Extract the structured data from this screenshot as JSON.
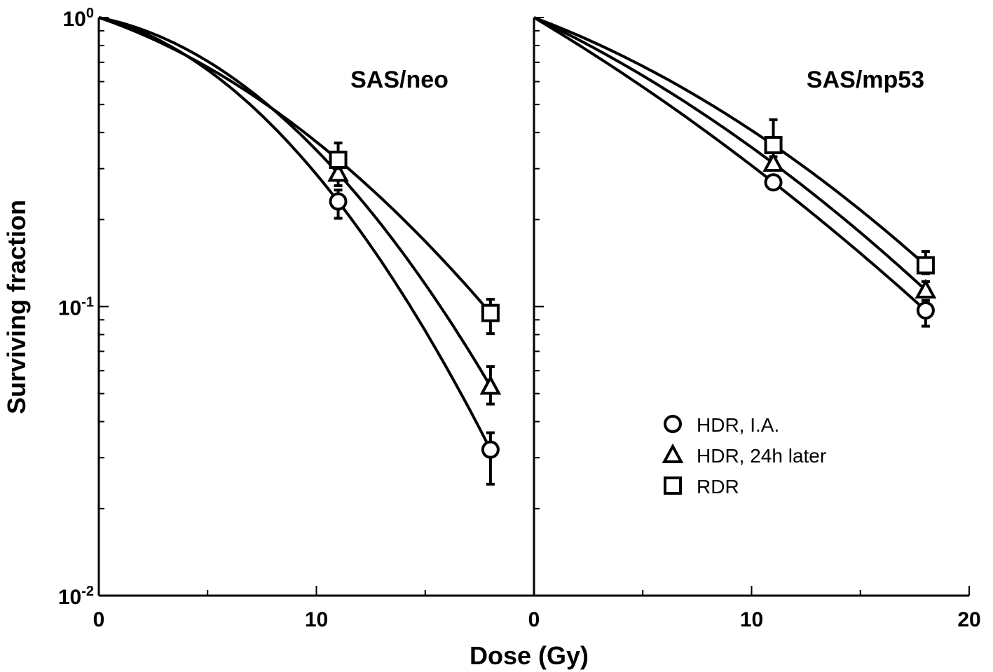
{
  "chart_data": [
    {
      "type": "scatter",
      "title": "SAS/neo",
      "xlabel": "Dose (Gy)",
      "ylabel": "Surviving fraction",
      "xlim": [
        0,
        20
      ],
      "ylim": [
        0.01,
        1
      ],
      "yscale": "log",
      "x_ticks": [
        "0",
        "10"
      ],
      "series": [
        {
          "name": "HDR, I.A.",
          "marker": "circle",
          "x": [
            0,
            11,
            18
          ],
          "y": [
            1,
            0.231,
            0.032
          ],
          "err_low": [
            null,
            0.202,
            0.0243
          ],
          "err_high": [
            null,
            0.253,
            0.0366
          ]
        },
        {
          "name": "HDR, 24h later",
          "marker": "triangle",
          "x": [
            0,
            11,
            18
          ],
          "y": [
            1,
            0.289,
            0.053
          ],
          "err_low": [
            null,
            0.262,
            0.046
          ],
          "err_high": [
            null,
            0.31,
            0.062
          ]
        },
        {
          "name": "RDR",
          "marker": "square",
          "x": [
            0,
            11,
            18
          ],
          "y": [
            1,
            0.322,
            0.095
          ],
          "err_low": [
            null,
            0.3,
            0.0806
          ],
          "err_high": [
            null,
            0.368,
            0.106
          ]
        }
      ]
    },
    {
      "type": "scatter",
      "title": "SAS/mp53",
      "xlabel": "Dose (Gy)",
      "xlim": [
        0,
        20
      ],
      "ylim": [
        0.01,
        1
      ],
      "yscale": "log",
      "x_ticks": [
        "0",
        "10",
        "20"
      ],
      "series": [
        {
          "name": "HDR, I.A.",
          "marker": "circle",
          "x": [
            0,
            11,
            18
          ],
          "y": [
            1,
            0.269,
            0.097
          ],
          "err_low": [
            null,
            0.26,
            0.0855
          ],
          "err_high": [
            null,
            0.28,
            0.105
          ]
        },
        {
          "name": "HDR, 24h later",
          "marker": "triangle",
          "x": [
            0,
            11,
            18
          ],
          "y": [
            1,
            0.313,
            0.114
          ],
          "err_low": [
            null,
            0.3,
            0.108
          ],
          "err_high": [
            null,
            0.33,
            0.122
          ]
        },
        {
          "name": "RDR",
          "marker": "square",
          "x": [
            0,
            11,
            18
          ],
          "y": [
            1,
            0.362,
            0.139
          ],
          "err_low": [
            null,
            0.35,
            0.13
          ],
          "err_high": [
            null,
            0.443,
            0.155
          ]
        }
      ]
    }
  ],
  "y_ticks": [
    {
      "base": "10",
      "exp": "0"
    },
    {
      "base": "10",
      "exp": "-1"
    },
    {
      "base": "10",
      "exp": "-2"
    }
  ],
  "legend": {
    "placement": "right panel, lower-middle",
    "items": [
      {
        "label": "HDR, I.A.",
        "marker": "circle"
      },
      {
        "label": "HDR, 24h later",
        "marker": "triangle"
      },
      {
        "label": "RDR",
        "marker": "square"
      }
    ]
  }
}
